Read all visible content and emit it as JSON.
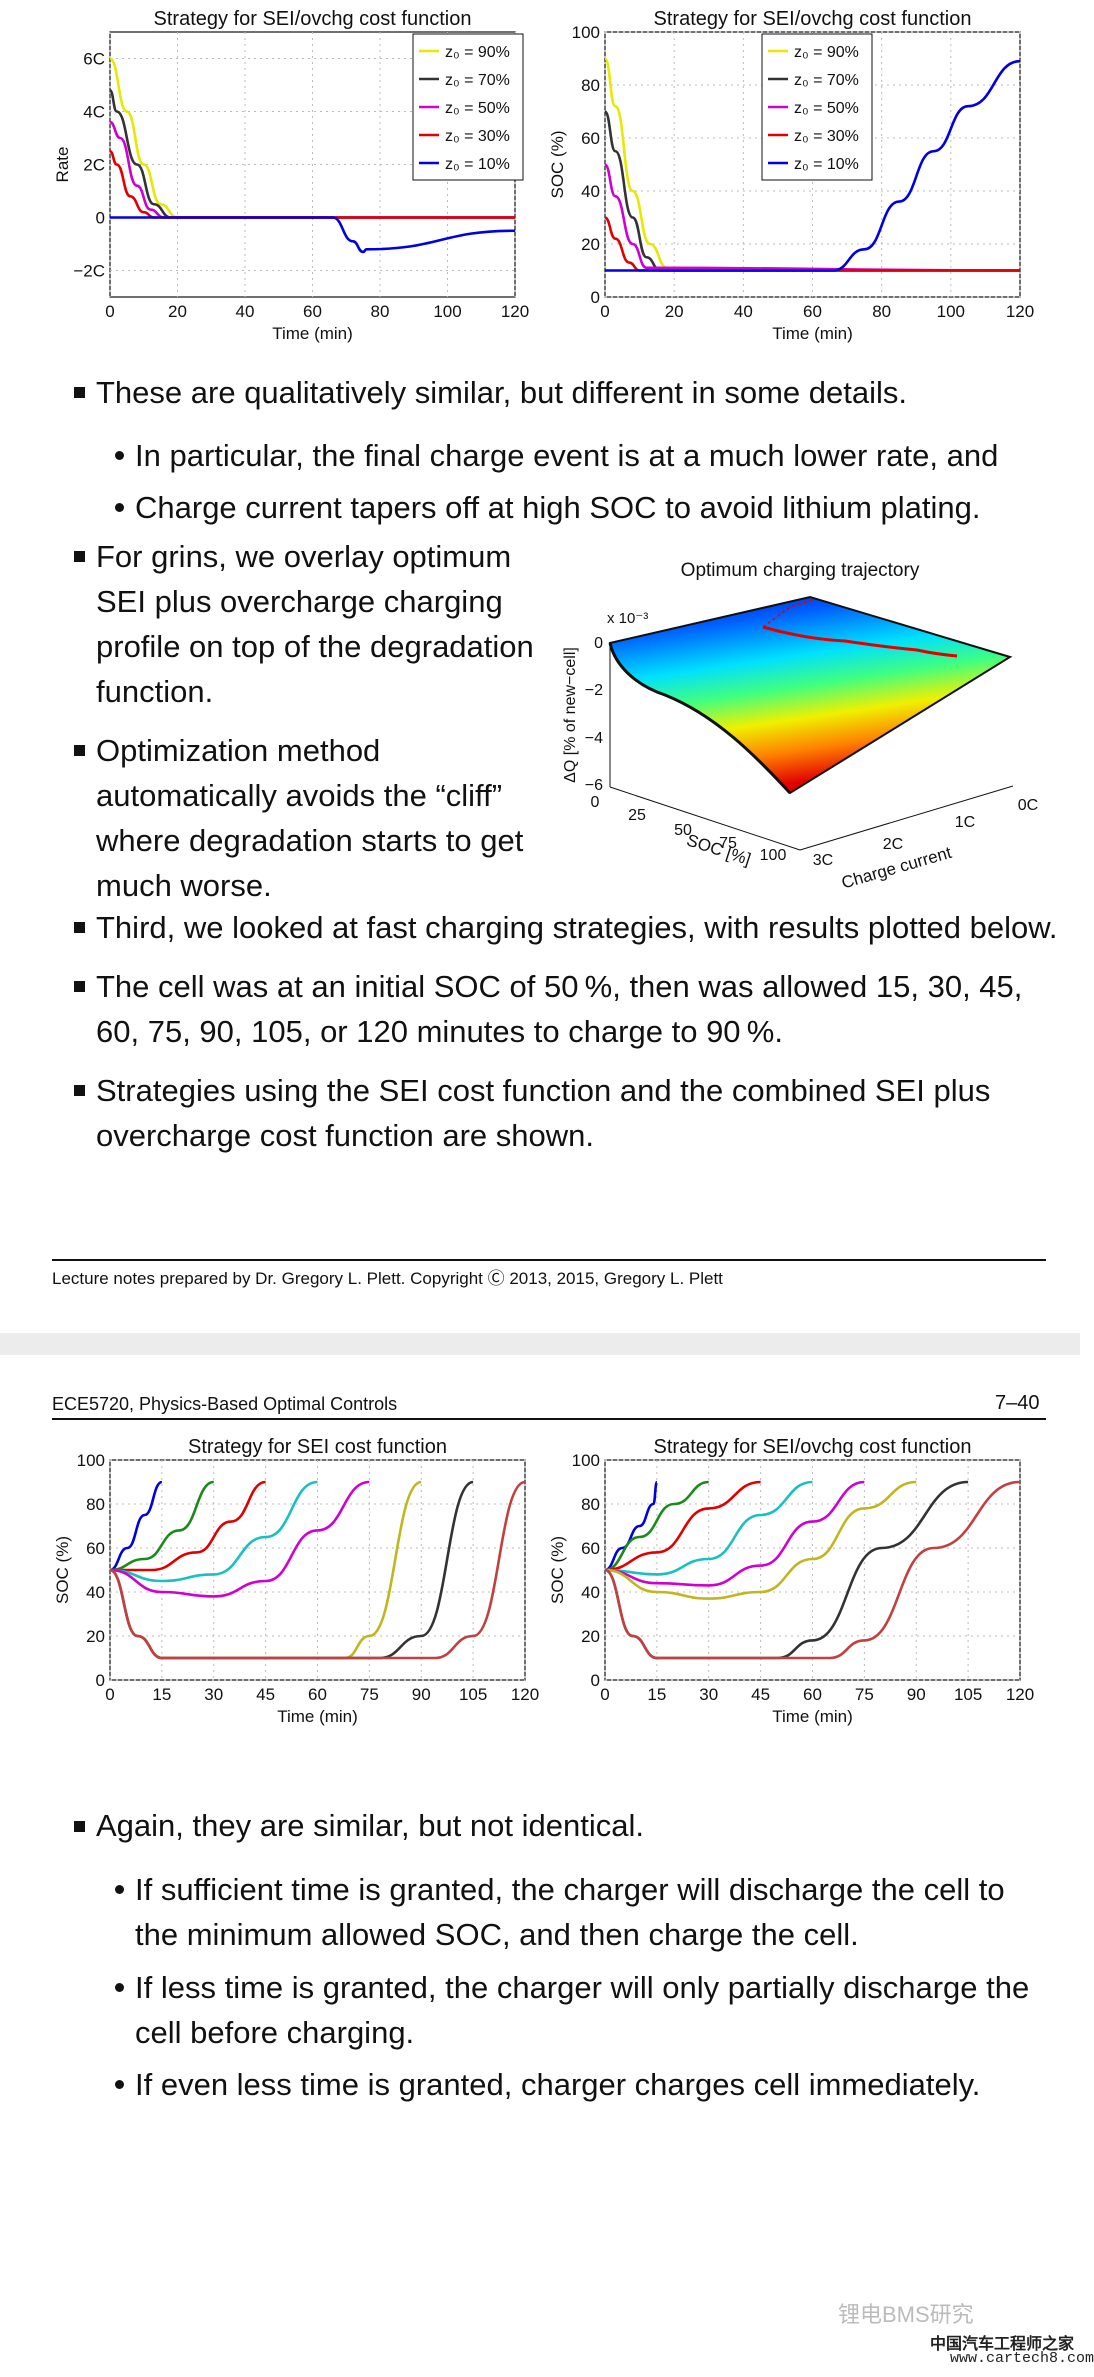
{
  "page1": {
    "charts": {
      "rate": {
        "title": "Strategy for SEI/ovchg cost function",
        "xlabel": "Time (min)",
        "ylabel": "Rate",
        "xticks": [
          "0",
          "20",
          "40",
          "60",
          "80",
          "100",
          "120"
        ],
        "yticks": [
          "6C",
          "4C",
          "2C",
          "0",
          "−2C"
        ]
      },
      "soc": {
        "title": "Strategy for SEI/ovchg cost function",
        "xlabel": "Time (min)",
        "ylabel": "SOC (%)",
        "xticks": [
          "0",
          "20",
          "40",
          "60",
          "80",
          "100",
          "120"
        ],
        "yticks": [
          "100",
          "80",
          "60",
          "40",
          "20",
          "0"
        ]
      },
      "legend": [
        "z₀ = 90%",
        "z₀ = 70%",
        "z₀ = 50%",
        "z₀ = 30%",
        "z₀ = 10%"
      ],
      "surface": {
        "title": "Optimum charging trajectory",
        "exponent": "x 10⁻³",
        "zlabel": "ΔQ [% of new−cell]",
        "zticks": [
          "0",
          "−2",
          "−4",
          "−6"
        ],
        "xlabel": "SOC [%]",
        "xticks": [
          "0",
          "25",
          "50",
          "75",
          "100"
        ],
        "ylabel": "Charge current",
        "yticks": [
          "0C",
          "1C",
          "2C",
          "3C"
        ]
      }
    },
    "bullets": {
      "b1": "These are qualitatively similar, but different in some details.",
      "b1a": "In particular, the final charge event is at a much lower rate, and",
      "b1b": "Charge current tapers off at high SOC to avoid lithium plating.",
      "b2_l1": "For grins, we overlay optimum",
      "b2_l2": "SEI plus overcharge charging",
      "b2_l3": "profile on top of the degradation",
      "b2_l4": "function.",
      "b3_l1": "Optimization method",
      "b3_l2": "automatically avoids the “cliff”",
      "b3_l3": "where degradation starts to get",
      "b3_l4": "much worse.",
      "b4": "Third, we looked at fast charging strategies, with results plotted below.",
      "b5_l1": "The cell was at an initial SOC of 50 %, then was allowed 15, 30, 45,",
      "b5_l2": "60, 75, 90, 105, or 120 minutes to charge to 90 %.",
      "b6_l1": "Strategies using the SEI cost function and the combined SEI plus",
      "b6_l2": "overcharge cost function are shown."
    },
    "footer": "Lecture notes prepared by Dr. Gregory L. Plett. Copyright Ⓒ 2013, 2015, Gregory L. Plett"
  },
  "page2": {
    "header_left": "ECE5720, Physics-Based Optimal Controls",
    "header_right": "7–40",
    "charts": {
      "sei": {
        "title": "Strategy for SEI cost function",
        "xlabel": "Time (min)",
        "ylabel": "SOC (%)",
        "xticks": [
          "0",
          "15",
          "30",
          "45",
          "60",
          "75",
          "90",
          "105",
          "120"
        ],
        "yticks": [
          "100",
          "80",
          "60",
          "40",
          "20",
          "0"
        ]
      },
      "ovchg": {
        "title": "Strategy for SEI/ovchg cost function",
        "xlabel": "Time (min)",
        "ylabel": "SOC (%)",
        "xticks": [
          "0",
          "15",
          "30",
          "45",
          "60",
          "75",
          "90",
          "105",
          "120"
        ],
        "yticks": [
          "100",
          "80",
          "60",
          "40",
          "20",
          "0"
        ]
      }
    },
    "bullets": {
      "c1": "Again, they are similar, but not identical.",
      "c1a_l1": "If sufficient time is granted, the charger will discharge the cell to",
      "c1a_l2": "the minimum allowed SOC, and then charge the cell.",
      "c1b_l1": "If less time is granted, the charger will only partially discharge the",
      "c1b_l2": "cell before charging.",
      "c1c": "If even less time is granted, charger charges cell immediately."
    },
    "watermark1": "锂电BMS研究",
    "watermark2": "中国汽车工程师之家",
    "watermark3": "www.cartech8.com"
  },
  "colors": {
    "z90": "#e8e800",
    "z70": "#333333",
    "z50": "#d000d0",
    "z30": "#e00000",
    "z10": "#0000e0",
    "green": "#1a8a1a",
    "cyan": "#19c0c0",
    "olive": "#c2b51e",
    "brown": "#c24040"
  },
  "chart_data": [
    {
      "type": "line",
      "title": "Strategy for SEI/ovchg cost function",
      "xlabel": "Time (min)",
      "ylabel": "Rate",
      "xlim": [
        0,
        120
      ],
      "ylim": [
        -3,
        7
      ],
      "series": [
        {
          "name": "z₀ = 90%",
          "x": [
            0,
            5,
            10,
            15,
            20,
            120
          ],
          "y": [
            6,
            4,
            2,
            0.5,
            0,
            0
          ]
        },
        {
          "name": "z₀ = 70%",
          "x": [
            0,
            2,
            8,
            13,
            18,
            120
          ],
          "y": [
            4.8,
            4,
            2,
            0.5,
            0,
            0
          ]
        },
        {
          "name": "z₀ = 50%",
          "x": [
            0,
            3,
            8,
            12,
            16,
            120
          ],
          "y": [
            3.6,
            3,
            1.2,
            0.3,
            0,
            0
          ]
        },
        {
          "name": "z₀ = 30%",
          "x": [
            0,
            2,
            6,
            10,
            13,
            120
          ],
          "y": [
            2.5,
            2,
            0.8,
            0.2,
            0,
            0
          ]
        },
        {
          "name": "z₀ = 10%",
          "x": [
            0,
            66,
            72,
            75,
            76,
            120
          ],
          "y": [
            0,
            0,
            -0.9,
            -1.3,
            -1.2,
            -0.5
          ]
        }
      ]
    },
    {
      "type": "line",
      "title": "Strategy for SEI/ovchg cost function",
      "xlabel": "Time (min)",
      "ylabel": "SOC (%)",
      "xlim": [
        0,
        120
      ],
      "ylim": [
        0,
        100
      ],
      "series": [
        {
          "name": "z₀ = 90%",
          "x": [
            0,
            3,
            8,
            13,
            18,
            20,
            120
          ],
          "y": [
            90,
            72,
            40,
            20,
            11,
            10,
            10
          ]
        },
        {
          "name": "z₀ = 70%",
          "x": [
            0,
            3,
            8,
            12,
            16,
            120
          ],
          "y": [
            70,
            55,
            30,
            15,
            10,
            10
          ]
        },
        {
          "name": "z₀ = 50%",
          "x": [
            0,
            3,
            8,
            12,
            120
          ],
          "y": [
            50,
            38,
            20,
            11,
            10
          ]
        },
        {
          "name": "z₀ = 30%",
          "x": [
            0,
            3,
            7,
            10,
            120
          ],
          "y": [
            30,
            22,
            13,
            10,
            10
          ]
        },
        {
          "name": "z₀ = 10%",
          "x": [
            0,
            66,
            75,
            85,
            95,
            105,
            120
          ],
          "y": [
            10,
            10,
            18,
            36,
            55,
            72,
            89
          ]
        }
      ]
    },
    {
      "type": "line",
      "title": "Strategy for SEI cost function",
      "xlabel": "Time (min)",
      "ylabel": "SOC (%)",
      "xlim": [
        0,
        120
      ],
      "ylim": [
        0,
        100
      ],
      "series": [
        {
          "x": [
            0,
            5,
            10,
            15
          ],
          "y": [
            50,
            60,
            75,
            90
          ]
        },
        {
          "x": [
            0,
            10,
            20,
            30
          ],
          "y": [
            50,
            55,
            68,
            90
          ]
        },
        {
          "x": [
            0,
            12,
            25,
            35,
            45
          ],
          "y": [
            50,
            50,
            58,
            72,
            90
          ]
        },
        {
          "x": [
            0,
            15,
            30,
            45,
            60
          ],
          "y": [
            50,
            45,
            48,
            65,
            90
          ]
        },
        {
          "x": [
            0,
            15,
            30,
            45,
            60,
            75
          ],
          "y": [
            50,
            40,
            38,
            45,
            68,
            90
          ]
        },
        {
          "x": [
            0,
            8,
            15,
            40,
            68,
            75,
            90
          ],
          "y": [
            50,
            20,
            10,
            10,
            10,
            20,
            90
          ]
        },
        {
          "x": [
            0,
            8,
            15,
            50,
            78,
            90,
            105
          ],
          "y": [
            50,
            20,
            10,
            10,
            10,
            20,
            90
          ]
        },
        {
          "x": [
            0,
            8,
            15,
            60,
            94,
            105,
            120
          ],
          "y": [
            50,
            20,
            10,
            10,
            10,
            20,
            90
          ]
        }
      ]
    },
    {
      "type": "line",
      "title": "Strategy for SEI/ovchg cost function",
      "xlabel": "Time (min)",
      "ylabel": "SOC (%)",
      "xlim": [
        0,
        120
      ],
      "ylim": [
        0,
        100
      ],
      "series": [
        {
          "x": [
            0,
            5,
            10,
            14,
            15
          ],
          "y": [
            50,
            60,
            70,
            80,
            90
          ]
        },
        {
          "x": [
            0,
            10,
            20,
            30
          ],
          "y": [
            50,
            65,
            80,
            90
          ]
        },
        {
          "x": [
            0,
            15,
            30,
            45
          ],
          "y": [
            50,
            58,
            78,
            90
          ]
        },
        {
          "x": [
            0,
            15,
            30,
            45,
            60
          ],
          "y": [
            50,
            48,
            55,
            75,
            90
          ]
        },
        {
          "x": [
            0,
            15,
            30,
            45,
            60,
            75
          ],
          "y": [
            50,
            44,
            43,
            52,
            72,
            90
          ]
        },
        {
          "x": [
            0,
            15,
            30,
            45,
            60,
            75,
            90
          ],
          "y": [
            50,
            40,
            37,
            40,
            55,
            78,
            90
          ]
        },
        {
          "x": [
            0,
            8,
            15,
            50,
            60,
            80,
            105
          ],
          "y": [
            50,
            20,
            10,
            10,
            18,
            60,
            90
          ]
        },
        {
          "x": [
            0,
            8,
            15,
            65,
            75,
            95,
            120
          ],
          "y": [
            50,
            20,
            10,
            10,
            18,
            60,
            90
          ]
        }
      ]
    }
  ]
}
